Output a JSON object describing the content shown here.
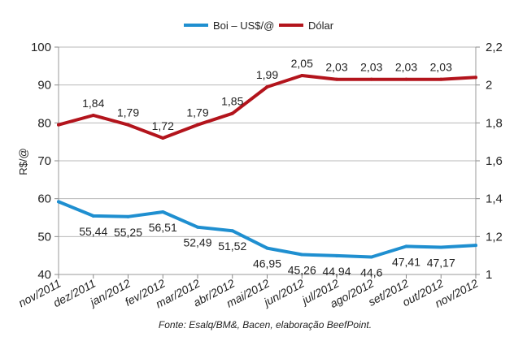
{
  "chart_data": {
    "type": "line",
    "categories": [
      "nov/2011",
      "dez/2011",
      "jan/2012",
      "fev/2012",
      "mar/2012",
      "abr/2012",
      "mai/2012",
      "jun/2012",
      "jul/2012",
      "ago/2012",
      "set/2012",
      "out/2012",
      "nov/2012"
    ],
    "series": [
      {
        "name": "Boi – US$/@",
        "axis": "left",
        "color": "#1f8fd0",
        "values": [
          59.2,
          55.44,
          55.25,
          56.51,
          52.49,
          51.52,
          46.95,
          45.26,
          44.94,
          44.6,
          47.41,
          47.17,
          47.7
        ],
        "labels": [
          "",
          "55,44",
          "55,25",
          "56,51",
          "52,49",
          "51,52",
          "46,95",
          "45,26",
          "44,94",
          "44,6",
          "47,41",
          "47,17",
          ""
        ]
      },
      {
        "name": "Dólar",
        "axis": "right",
        "color": "#b3141c",
        "values": [
          1.79,
          1.84,
          1.79,
          1.72,
          1.79,
          1.85,
          1.99,
          2.05,
          2.03,
          2.03,
          2.03,
          2.03,
          2.04
        ],
        "labels": [
          "",
          "1,84",
          "1,79",
          "1,72",
          "1,79",
          "1,85",
          "1,99",
          "2,05",
          "2,03",
          "2,03",
          "2,03",
          "2,03",
          ""
        ]
      }
    ],
    "ylabel": "R$/@",
    "ylim": [
      40,
      100
    ],
    "yticks": [
      "40",
      "50",
      "60",
      "70",
      "80",
      "90",
      "100"
    ],
    "y2lim": [
      1,
      2.2
    ],
    "y2ticks": [
      "1",
      "1,2",
      "1,4",
      "1,6",
      "1,8",
      "2",
      "2,2"
    ],
    "grid": true,
    "legend_position": "top-center",
    "source": "Fonte: Esalq/BM&, Bacen, elaboração BeefPoint."
  }
}
